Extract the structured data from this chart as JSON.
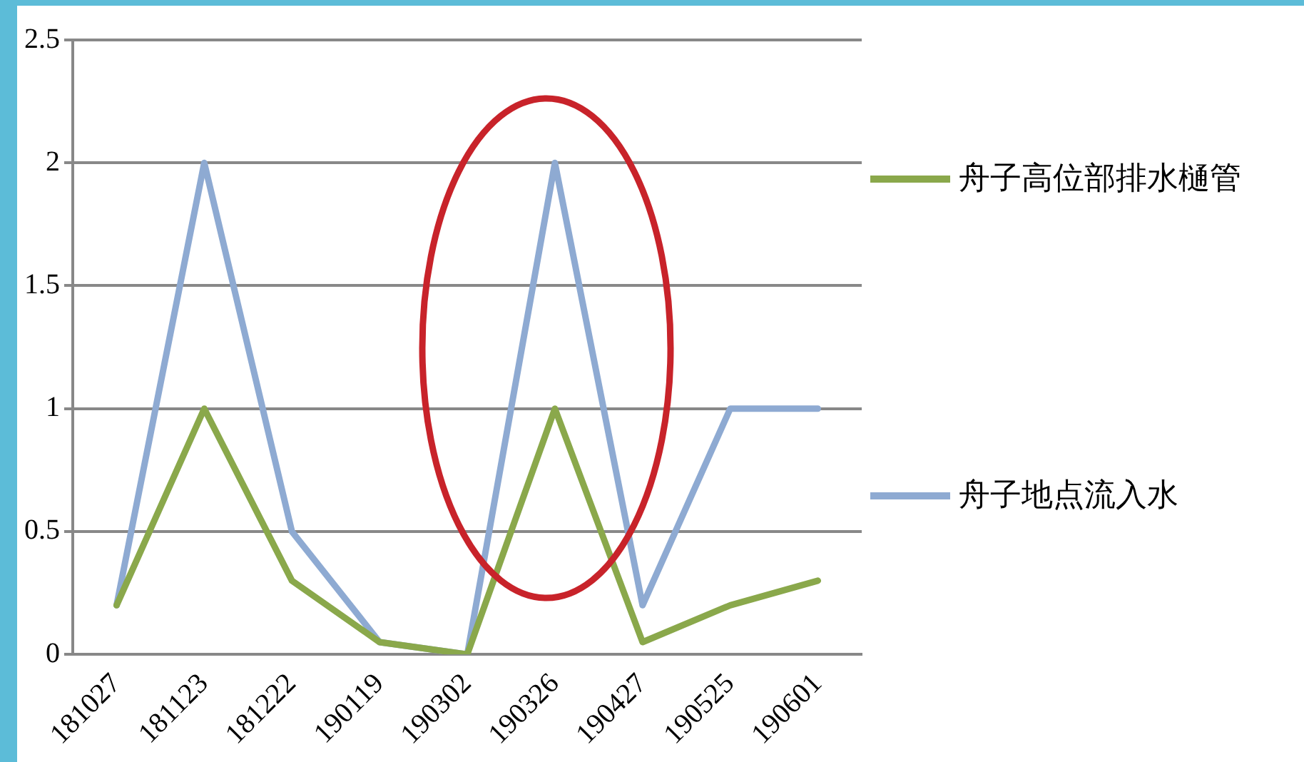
{
  "chart_data": {
    "type": "line",
    "categories": [
      "181027",
      "181123",
      "181222",
      "190119",
      "190302",
      "190326",
      "190427",
      "190525",
      "190601"
    ],
    "series": [
      {
        "name": "舟子高位部排水樋管",
        "color": "#8aa84b",
        "values": [
          0.2,
          1,
          0.3,
          0.05,
          0,
          1,
          0.05,
          0.2,
          0.3
        ]
      },
      {
        "name": "舟子地点流入水",
        "color": "#8eaad2",
        "values": [
          0.2,
          2,
          0.5,
          0.05,
          0,
          2,
          0.2,
          1,
          1
        ]
      }
    ],
    "ylim": [
      0,
      2.5
    ],
    "yticks": [
      0,
      0.5,
      1,
      1.5,
      2,
      2.5
    ],
    "grid": "y",
    "legend": "right",
    "marker": "none",
    "line_style": "solid"
  }
}
